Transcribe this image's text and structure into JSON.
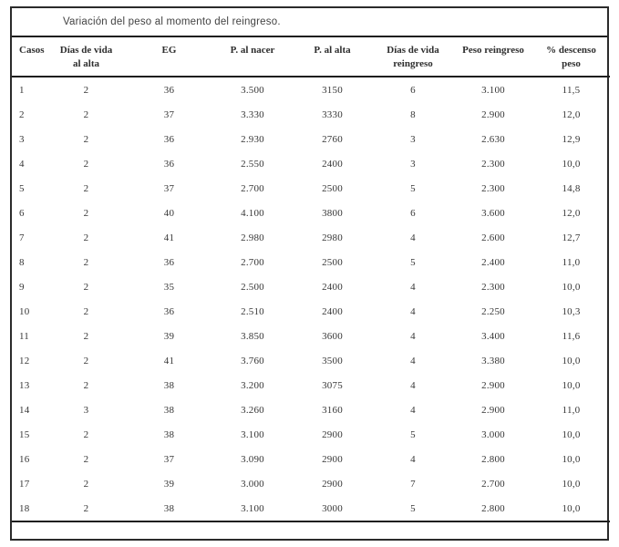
{
  "title": "Variación del peso al momento del reingreso.",
  "table": {
    "columns": [
      "Casos",
      "Días de vida\nal alta",
      "EG",
      "P. al nacer",
      "P. al alta",
      "Días de vida\nreingreso",
      "Peso reingreso",
      "% descenso\npeso"
    ],
    "rows": [
      [
        "1",
        "2",
        "36",
        "3.500",
        "3150",
        "6",
        "3.100",
        "11,5"
      ],
      [
        "2",
        "2",
        "37",
        "3.330",
        "3330",
        "8",
        "2.900",
        "12,0"
      ],
      [
        "3",
        "2",
        "36",
        "2.930",
        "2760",
        "3",
        "2.630",
        "12,9"
      ],
      [
        "4",
        "2",
        "36",
        "2.550",
        "2400",
        "3",
        "2.300",
        "10,0"
      ],
      [
        "5",
        "2",
        "37",
        "2.700",
        "2500",
        "5",
        "2.300",
        "14,8"
      ],
      [
        "6",
        "2",
        "40",
        "4.100",
        "3800",
        "6",
        "3.600",
        "12,0"
      ],
      [
        "7",
        "2",
        "41",
        "2.980",
        "2980",
        "4",
        "2.600",
        "12,7"
      ],
      [
        "8",
        "2",
        "36",
        "2.700",
        "2500",
        "5",
        "2.400",
        "11,0"
      ],
      [
        "9",
        "2",
        "35",
        "2.500",
        "2400",
        "4",
        "2.300",
        "10,0"
      ],
      [
        "10",
        "2",
        "36",
        "2.510",
        "2400",
        "4",
        "2.250",
        "10,3"
      ],
      [
        "11",
        "2",
        "39",
        "3.850",
        "3600",
        "4",
        "3.400",
        "11,6"
      ],
      [
        "12",
        "2",
        "41",
        "3.760",
        "3500",
        "4",
        "3.380",
        "10,0"
      ],
      [
        "13",
        "2",
        "38",
        "3.200",
        "3075",
        "4",
        "2.900",
        "10,0"
      ],
      [
        "14",
        "3",
        "38",
        "3.260",
        "3160",
        "4",
        "2.900",
        "11,0"
      ],
      [
        "15",
        "2",
        "38",
        "3.100",
        "2900",
        "5",
        "3.000",
        "10,0"
      ],
      [
        "16",
        "2",
        "37",
        "3.090",
        "2900",
        "4",
        "2.800",
        "10,0"
      ],
      [
        "17",
        "2",
        "39",
        "3.000",
        "2900",
        "7",
        "2.700",
        "10,0"
      ],
      [
        "18",
        "2",
        "38",
        "3.100",
        "3000",
        "5",
        "2.800",
        "10,0"
      ]
    ]
  },
  "colors": {
    "rule": "#1e1e1e",
    "frame_border": "#2b2b2b",
    "text": "#363636"
  }
}
